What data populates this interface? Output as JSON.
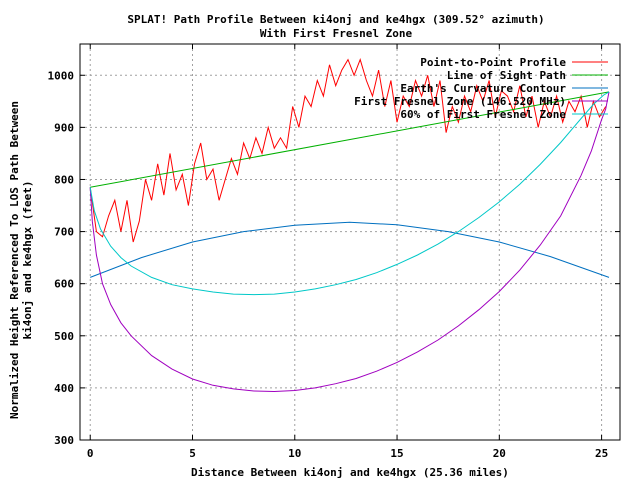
{
  "chart_data": {
    "type": "line",
    "title": "SPLAT! Path Profile Between ki4onj and ke4hgx (309.52° azimuth)",
    "subtitle": "With First Fresnel Zone",
    "xlabel": "Distance Between ki4onj and ke4hgx (25.36 miles)",
    "ylabel_line1": "Normalized Height Referenced To LOS Path Between",
    "ylabel_line2": "ki4onj and ke4hgx (feet)",
    "xlim": [
      -0.5,
      25.9
    ],
    "ylim": [
      300,
      1060
    ],
    "xticks": [
      0,
      5,
      10,
      15,
      20,
      25
    ],
    "yticks": [
      300,
      400,
      500,
      600,
      700,
      800,
      900,
      1000
    ],
    "grid": true,
    "legend_position": "top-right",
    "series": [
      {
        "name": "Point-to-Point Profile",
        "color": "#ff0000",
        "x": [
          0,
          0.3,
          0.6,
          0.9,
          1.2,
          1.5,
          1.8,
          2.1,
          2.4,
          2.7,
          3.0,
          3.3,
          3.6,
          3.9,
          4.2,
          4.5,
          4.8,
          5.1,
          5.4,
          5.7,
          6.0,
          6.3,
          6.6,
          6.9,
          7.2,
          7.5,
          7.8,
          8.1,
          8.4,
          8.7,
          9.0,
          9.3,
          9.6,
          9.9,
          10.2,
          10.5,
          10.8,
          11.1,
          11.4,
          11.7,
          12.0,
          12.3,
          12.6,
          12.9,
          13.2,
          13.5,
          13.8,
          14.1,
          14.4,
          14.7,
          15.0,
          15.3,
          15.6,
          15.9,
          16.2,
          16.5,
          16.8,
          17.1,
          17.4,
          17.7,
          18.0,
          18.3,
          18.6,
          18.9,
          19.2,
          19.5,
          19.8,
          20.1,
          20.4,
          20.7,
          21.0,
          21.3,
          21.6,
          21.9,
          22.2,
          22.5,
          22.8,
          23.1,
          23.4,
          23.7,
          24.0,
          24.3,
          24.6,
          24.9,
          25.2
        ],
        "y": [
          785,
          700,
          690,
          730,
          760,
          700,
          760,
          680,
          720,
          800,
          760,
          830,
          770,
          850,
          780,
          810,
          750,
          830,
          870,
          800,
          820,
          760,
          800,
          840,
          810,
          870,
          840,
          880,
          850,
          900,
          860,
          880,
          860,
          940,
          900,
          960,
          940,
          990,
          960,
          1020,
          980,
          1010,
          1030,
          1000,
          1030,
          990,
          960,
          1010,
          940,
          990,
          910,
          960,
          940,
          990,
          960,
          1000,
          940,
          990,
          890,
          940,
          910,
          960,
          930,
          980,
          950,
          990,
          920,
          970,
          960,
          930,
          980,
          920,
          960,
          900,
          950,
          920,
          960,
          910,
          950,
          930,
          960,
          900,
          950,
          920,
          940
        ]
      },
      {
        "name": "Line of Sight Path",
        "color": "#00b000",
        "x": [
          0,
          25.36
        ],
        "y": [
          785,
          968
        ]
      },
      {
        "name": "Earth's Curvature Contour",
        "color": "#0070c0",
        "x": [
          0,
          2.5,
          5,
          7.5,
          10,
          12.68,
          15,
          17.5,
          20,
          22.5,
          25.36
        ],
        "y": [
          612,
          650,
          680,
          700,
          712,
          718,
          713,
          700,
          680,
          652,
          612
        ]
      },
      {
        "name": "First Fresnel Zone (146.520 MHz)",
        "color": "#a000c0",
        "x": [
          0,
          0.1,
          0.3,
          0.6,
          1,
          1.5,
          2,
          3,
          4,
          5,
          6,
          7,
          8,
          9,
          10,
          11,
          12,
          13,
          14,
          15,
          16,
          17,
          18,
          19,
          20,
          21,
          22,
          23,
          24,
          24.5,
          25,
          25.2,
          25.36
        ],
        "y": [
          785,
          720,
          655,
          600,
          560,
          525,
          500,
          462,
          436,
          417,
          405,
          398,
          394,
          393,
          395,
          400,
          408,
          418,
          432,
          449,
          469,
          492,
          519,
          550,
          585,
          626,
          674,
          730,
          808,
          855,
          915,
          935,
          968
        ]
      },
      {
        "name": "60% of First Fresnel Zone",
        "color": "#00c8c8",
        "x": [
          0,
          0.2,
          0.5,
          1,
          1.5,
          2,
          3,
          4,
          5,
          6,
          7,
          8,
          9,
          10,
          11,
          12,
          13,
          14,
          15,
          16,
          17,
          18,
          19,
          20,
          21,
          22,
          23,
          24,
          24.6,
          25.1,
          25.36
        ],
        "y": [
          785,
          740,
          705,
          672,
          650,
          634,
          612,
          598,
          590,
          584,
          580,
          579,
          580,
          584,
          590,
          598,
          608,
          621,
          637,
          655,
          676,
          700,
          727,
          757,
          791,
          829,
          871,
          917,
          944,
          962,
          968
        ]
      }
    ]
  }
}
